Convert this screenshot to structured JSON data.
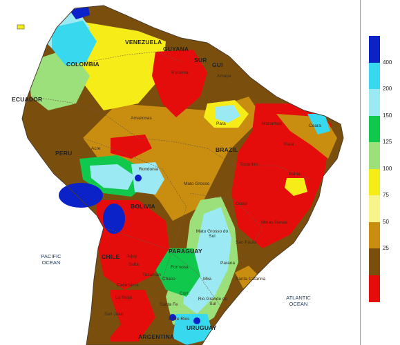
{
  "map": {
    "countries": [
      "VENEZUELA",
      "GUYANA",
      "SUR",
      "GUI",
      "COLOMBIA",
      "ECUADOR",
      "PERU",
      "BRAZIL",
      "BOLIVIA",
      "PARAGUAY",
      "CHILE",
      "URUGUAY",
      "ARGENTINA"
    ],
    "states": [
      "Roraima",
      "Amapa",
      "Amazonas",
      "Para",
      "Maranhao",
      "Ceara",
      "Piaui",
      "Acre",
      "Rondonia",
      "Tocantins",
      "Bahia",
      "Mato Grosso",
      "Goias",
      "Minas Gerais",
      "Mato Grosso do Sul",
      "Sao Paulo",
      "Parana",
      "Santa Catarina",
      "Rio Grande do Sul",
      "Jujuy",
      "Salta",
      "Formosa",
      "Chaco",
      "Misi.",
      "Catamarca",
      "Tucuman",
      "La Rioja",
      "Corr.",
      "Santa Fe",
      "San Juan",
      "Entre Rios"
    ],
    "oceans": [
      "PACIFIC OCEAN",
      "ATLANTIC OCEAN"
    ]
  },
  "legend": {
    "ticks": [
      "400",
      "200",
      "150",
      "125",
      "100",
      "75",
      "50",
      "25"
    ],
    "colors": [
      "#0a22c8",
      "#38d8ee",
      "#9be9f3",
      "#10c84c",
      "#9be07a",
      "#f6ec18",
      "#f7f48c",
      "#c98e10",
      "#7a4f0e",
      "#e50c0c"
    ]
  }
}
